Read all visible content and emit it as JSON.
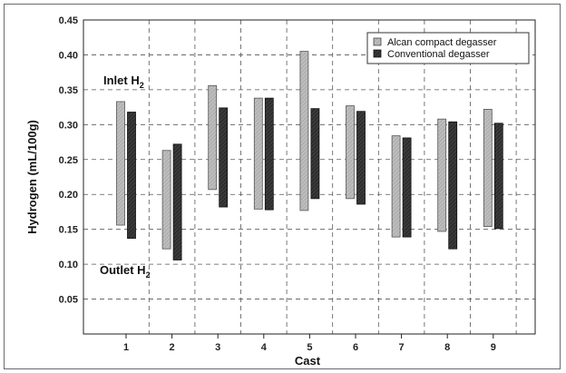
{
  "chart_data": {
    "type": "bar",
    "subtype": "floating-range",
    "categories": [
      "1",
      "2",
      "3",
      "4",
      "5",
      "6",
      "7",
      "8",
      "9"
    ],
    "series": [
      {
        "name": "Alcan compact degasser",
        "color": "#b4b4b4",
        "low": [
          0.156,
          0.122,
          0.207,
          0.179,
          0.177,
          0.194,
          0.139,
          0.147,
          0.154
        ],
        "high": [
          0.333,
          0.263,
          0.356,
          0.338,
          0.405,
          0.327,
          0.284,
          0.308,
          0.322
        ]
      },
      {
        "name": "Conventional degasser",
        "color": "#2e2e2e",
        "low": [
          0.137,
          0.106,
          0.182,
          0.178,
          0.194,
          0.186,
          0.139,
          0.122,
          0.151
        ],
        "high": [
          0.318,
          0.272,
          0.324,
          0.338,
          0.323,
          0.319,
          0.281,
          0.304,
          0.302
        ]
      }
    ],
    "xlabel": "Cast",
    "ylabel": "Hydrogen (mL/100g)",
    "ylim": [
      0,
      0.45
    ],
    "yticks": [
      "0.05",
      "0.10",
      "0.15",
      "0.20",
      "0.25",
      "0.30",
      "0.35",
      "0.40",
      "0.45"
    ],
    "grid": true,
    "legend_position": "top-right",
    "annotations": [
      {
        "text": "Inlet H",
        "sub": "2",
        "anchor_y": 0.358,
        "position": "upper-left"
      },
      {
        "text": "Outlet H",
        "sub": "2",
        "anchor_y": 0.085,
        "position": "lower-left"
      }
    ]
  }
}
